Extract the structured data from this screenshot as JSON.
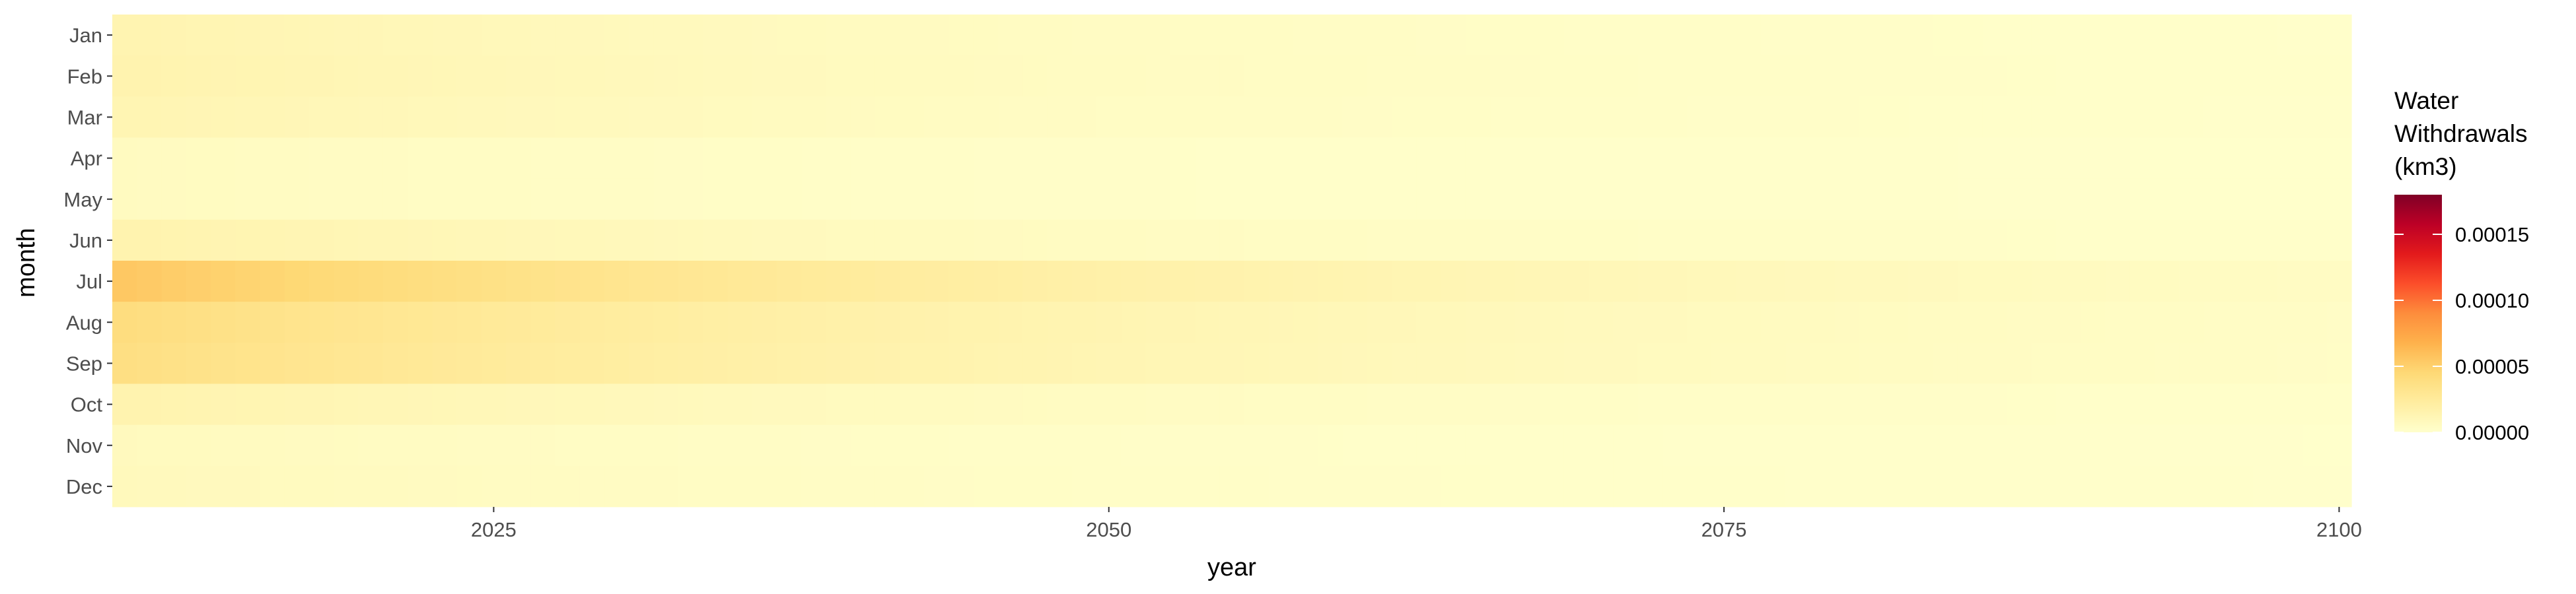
{
  "chart_data": {
    "type": "heatmap",
    "xlabel": "year",
    "ylabel": "month",
    "x_ticks": [
      2025,
      2050,
      2075,
      2100
    ],
    "xlim": [
      2009.5,
      2100.5
    ],
    "year_start": 2010,
    "year_end": 2100,
    "months": [
      "Jan",
      "Feb",
      "Mar",
      "Apr",
      "May",
      "Jun",
      "Jul",
      "Aug",
      "Sep",
      "Oct",
      "Nov",
      "Dec"
    ],
    "monthly_values_2010": [
      1.4e-05,
      1.5e-05,
      1.3e-05,
      6e-06,
      6e-06,
      1.5e-05,
      5.5e-05,
      4e-05,
      3.8e-05,
      1.5e-05,
      7e-06,
      8e-06
    ],
    "monthly_values_2100": [
      1.2e-06,
      1.3e-06,
      1.1e-06,
      5e-07,
      5e-07,
      1.3e-06,
      4.5e-06,
      3.3e-06,
      3.1e-06,
      1.3e-06,
      6e-07,
      7e-07
    ],
    "legend": {
      "title": [
        "Water",
        "Withdrawals",
        "(km3)"
      ],
      "labels": [
        "0.00000",
        "0.00005",
        "0.00010",
        "0.00015"
      ],
      "breaks": [
        0,
        5e-05,
        0.0001,
        0.00015
      ],
      "limits": [
        0,
        0.00018
      ],
      "colors": [
        "#ffffcc",
        "#ffeda0",
        "#fed976",
        "#feb24c",
        "#fd8d3c",
        "#fc4e2a",
        "#e31a1c",
        "#bd0026",
        "#800026"
      ]
    }
  }
}
